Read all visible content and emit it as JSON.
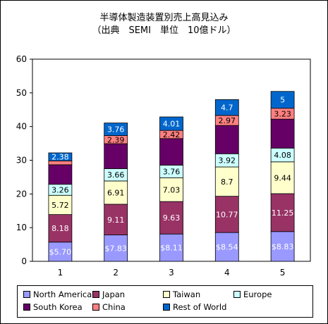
{
  "chart_data": {
    "type": "bar",
    "stacked": true,
    "title": "半導体製造装置別売上高見込み",
    "subtitle": "（出典　SEMI　単位　10億ドル）",
    "categories": [
      "1",
      "2",
      "3",
      "4",
      "5"
    ],
    "ylim": [
      0,
      60
    ],
    "yticks": [
      0,
      10,
      20,
      30,
      40,
      50,
      60
    ],
    "grid": false,
    "legend_position": "bottom",
    "series": [
      {
        "name": "North America",
        "color": "#9999ff",
        "values": [
          5.7,
          7.83,
          8.11,
          8.54,
          8.83
        ],
        "labels": [
          "$5.70",
          "$7.83",
          "$8.11",
          "$8.54",
          "$8.83"
        ]
      },
      {
        "name": "Japan",
        "color": "#993366",
        "values": [
          8.18,
          9.11,
          9.63,
          10.77,
          11.25
        ],
        "labels": [
          "8.18",
          "9.11",
          "9.63",
          "10.77",
          "11.25"
        ]
      },
      {
        "name": "Taiwan",
        "color": "#ffffcc",
        "values": [
          5.72,
          6.91,
          7.03,
          8.7,
          9.44
        ],
        "labels": [
          "5.72",
          "6.91",
          "7.03",
          "8.7",
          "9.44"
        ]
      },
      {
        "name": "Europe",
        "color": "#ccffff",
        "values": [
          3.26,
          3.66,
          3.76,
          3.92,
          4.08
        ],
        "labels": [
          "3.26",
          "3.66",
          "3.76",
          "3.92",
          "4.08"
        ]
      },
      {
        "name": "South Korea",
        "color": "#660066",
        "values": [
          5.8,
          7.4,
          7.9,
          8.4,
          8.6
        ],
        "labels": [
          "",
          "",
          "",
          "",
          ""
        ]
      },
      {
        "name": "China",
        "color": "#ff8080",
        "values": [
          1.15,
          2.39,
          2.42,
          2.97,
          3.23
        ],
        "labels": [
          "",
          "2.39",
          "2.42",
          "2.97",
          "3.23"
        ]
      },
      {
        "name": "Rest of World",
        "color": "#0066cc",
        "values": [
          2.38,
          3.76,
          4.01,
          4.7,
          5.0
        ],
        "labels": [
          "2.38",
          "3.76",
          "4.01",
          "4.7",
          "5"
        ]
      }
    ]
  }
}
